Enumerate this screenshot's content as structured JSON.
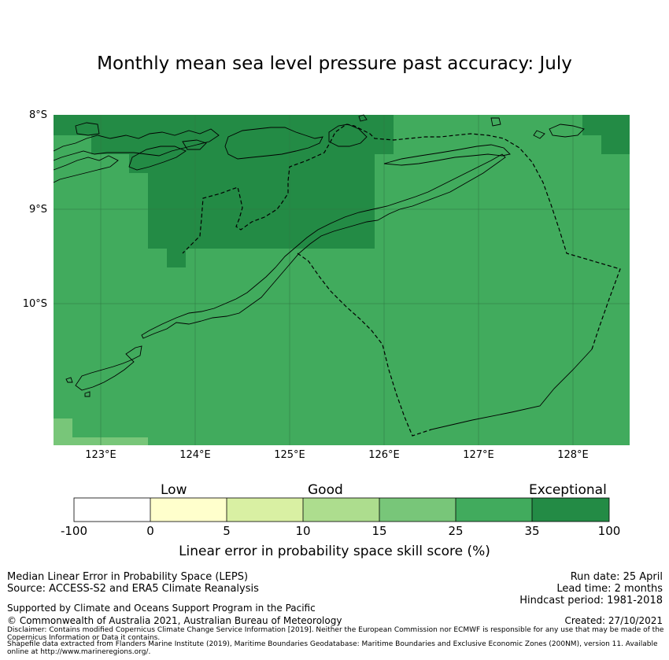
{
  "title": "Monthly mean sea level pressure past accuracy: July",
  "map": {
    "lat_ticks": [
      "8°S",
      "9°S",
      "10°S"
    ],
    "lon_ticks": [
      "123°E",
      "124°E",
      "125°E",
      "126°E",
      "127°E",
      "128°E"
    ],
    "lon_range": [
      122.5,
      128.6
    ],
    "lat_range": [
      -11.5,
      -8.0
    ],
    "background_color": "#41ab5d",
    "region_colors": {
      "exceptional": "#238b45",
      "good_upper": "#41ab5d",
      "good_lower": "#78c679"
    }
  },
  "colorbar": {
    "category_labels": [
      "Low",
      "Good",
      "Exceptional"
    ],
    "ticks": [
      "-100",
      "0",
      "5",
      "10",
      "15",
      "25",
      "35",
      "100"
    ],
    "colors": [
      "#ffffff",
      "#ffffcc",
      "#d9f0a3",
      "#addd8e",
      "#78c679",
      "#41ab5d",
      "#238b45"
    ],
    "label": "Linear error in probability space skill score (%)"
  },
  "footer": {
    "method": "Median Linear Error in Probability Space (LEPS)",
    "source": "Source: ACCESS-S2 and ERA5 Climate Reanalysis",
    "support": "Supported by Climate and Oceans Support Program in the Pacific",
    "copyright": "© Commonwealth of Australia 2021, Australian Bureau of Meteorology",
    "disclaimer": "Disclaimer: Contains modified Copernicus Climate Change Service Information [2019]. Neither the European Commission nor ECMWF is responsible for any use that may be made of the Copernicus Information or Data it contains.",
    "shapefile": "Shapefile data extracted from Flanders Marine Institute (2019), Maritime Boundaries Geodatabase: Maritime Boundaries and Exclusive Economic Zones (200NM), version 11. Available online at http://www.marineregions.org/.",
    "run_date": "Run date: 25 April",
    "lead_time": "Lead time: 2 months",
    "hindcast": "Hindcast period: 1981-2018",
    "created": "Created: 27/10/2021"
  }
}
